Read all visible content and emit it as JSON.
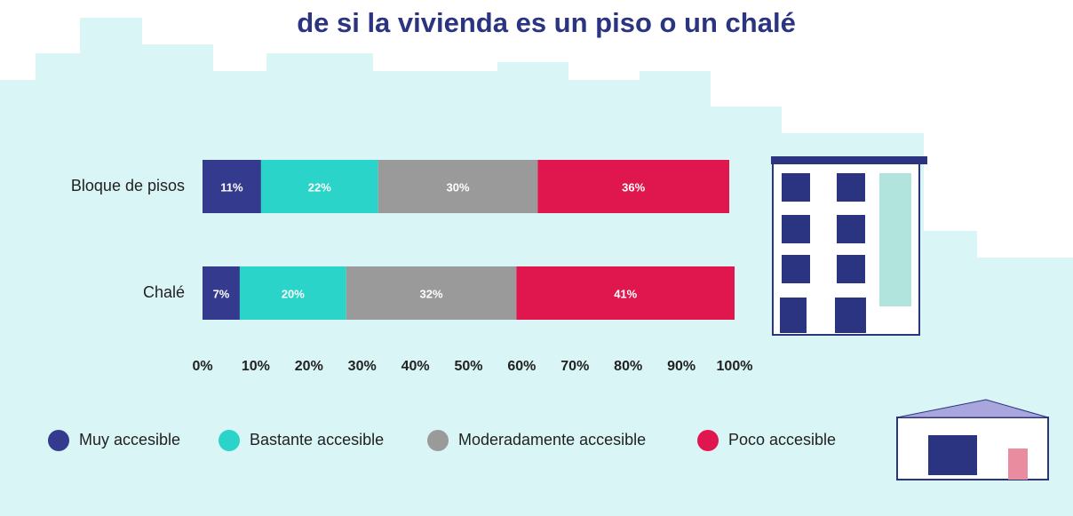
{
  "chart_data": {
    "type": "stacked_barh",
    "title": "de si la vivienda es un piso o un chalé",
    "categories": [
      "Bloque de pisos",
      "Chalé"
    ],
    "series": [
      {
        "name": "Muy accesible",
        "color": "#343a8e",
        "values": [
          11,
          7
        ],
        "value_labels": [
          "11%",
          "7%"
        ]
      },
      {
        "name": "Bastante accesible",
        "color": "#2ad4c8",
        "values": [
          22,
          20
        ],
        "value_labels": [
          "22%",
          "20%"
        ]
      },
      {
        "name": "Moderadamente accesible",
        "color": "#9a9a9a",
        "values": [
          30,
          32
        ],
        "value_labels": [
          "30%",
          "32%"
        ]
      },
      {
        "name": "Poco accesible",
        "color": "#e0174f",
        "values": [
          36,
          41
        ],
        "value_labels": [
          "36%",
          "41%"
        ]
      }
    ],
    "xlim": [
      0,
      100
    ],
    "xticks": [
      {
        "value": 0,
        "label": "0%"
      },
      {
        "value": 10,
        "label": "10%"
      },
      {
        "value": 20,
        "label": "20%"
      },
      {
        "value": 30,
        "label": "30%"
      },
      {
        "value": 40,
        "label": "40%"
      },
      {
        "value": 50,
        "label": "50%"
      },
      {
        "value": 60,
        "label": "60%"
      },
      {
        "value": 70,
        "label": "70%"
      },
      {
        "value": 80,
        "label": "80%"
      },
      {
        "value": 90,
        "label": "90%"
      },
      {
        "value": 100,
        "label": "100%"
      }
    ],
    "legend": "bottom"
  }
}
